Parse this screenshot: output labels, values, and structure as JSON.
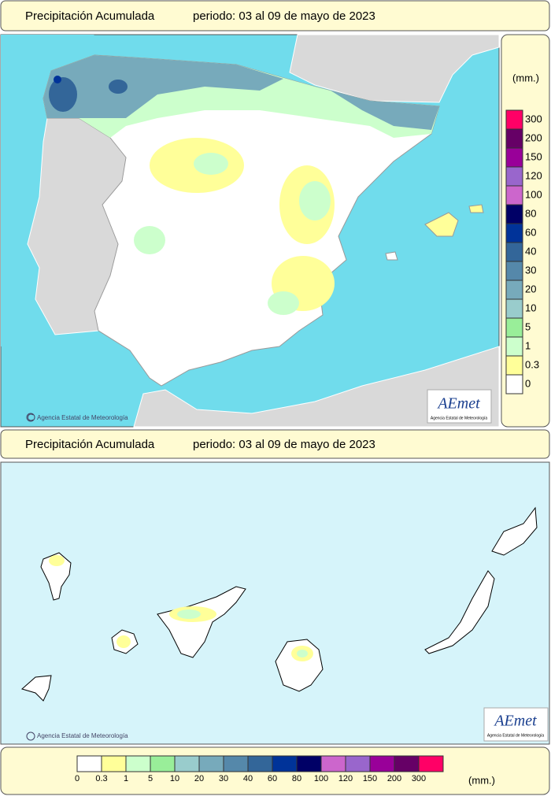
{
  "top_panel": {
    "title": "Precipitación Acumulada",
    "period": "periodo: 03 al 09 de mayo de 2023",
    "credit": "Agencia Estatal de Meteorología",
    "logo": "AEmet",
    "logo_subtitle": "Agencia Estatal de Meteorología"
  },
  "bottom_panel": {
    "title": "Precipitación Acumulada",
    "period": "periodo: 03 al 09 de mayo de 2023",
    "credit": "Agencia Estatal de Meteorología",
    "logo": "AEmet",
    "logo_subtitle": "Agencia Estatal de Meteorología"
  },
  "legend": {
    "unit": "(mm.)",
    "items": [
      {
        "label": "0",
        "color": "#ffffff"
      },
      {
        "label": "0.3",
        "color": "#ffff99"
      },
      {
        "label": "1",
        "color": "#ccffcc"
      },
      {
        "label": "5",
        "color": "#99ee99"
      },
      {
        "label": "10",
        "color": "#99cccc"
      },
      {
        "label": "20",
        "color": "#77aabb"
      },
      {
        "label": "30",
        "color": "#5588aa"
      },
      {
        "label": "40",
        "color": "#336699"
      },
      {
        "label": "60",
        "color": "#003399"
      },
      {
        "label": "80",
        "color": "#000066"
      },
      {
        "label": "100",
        "color": "#cc66cc"
      },
      {
        "label": "120",
        "color": "#9966cc"
      },
      {
        "label": "150",
        "color": "#990099"
      },
      {
        "label": "200",
        "color": "#660066"
      },
      {
        "label": "300",
        "color": "#ff0066"
      }
    ]
  },
  "bottom_legend": {
    "unit": "(mm.)"
  }
}
